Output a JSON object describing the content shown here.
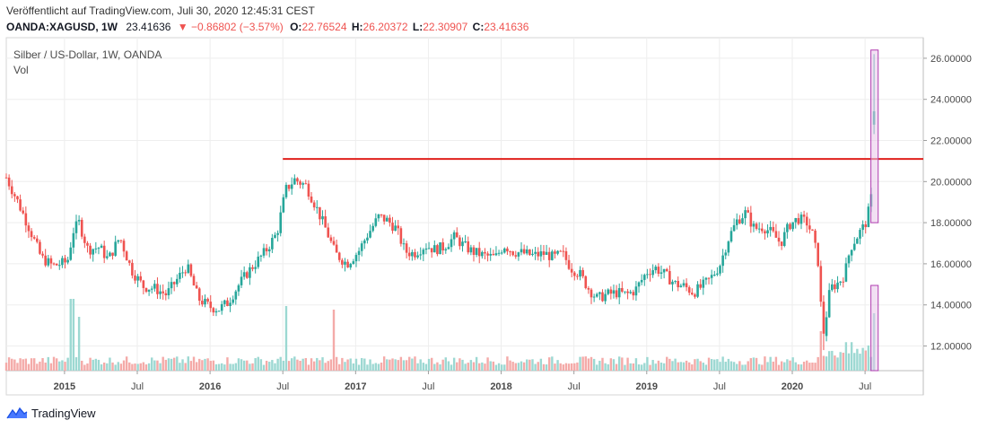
{
  "header": {
    "published": "Veröffentlicht auf TradingView.com, Juli 30, 2020 12:45:31 CEST",
    "symbol": "OANDA:XAGUSD, 1W",
    "last": "23.41636",
    "change": "−0.86802 (−3.57%)",
    "open_label": "O:",
    "open": "22.76524",
    "high_label": "H:",
    "high": "26.20372",
    "low_label": "L:",
    "low": "22.30907",
    "close_label": "C:",
    "close": "23.41636"
  },
  "legend": {
    "title": "Silber / US-Dollar, 1W, OANDA",
    "volume": "Vol"
  },
  "brand": {
    "name": "TradingView",
    "icon": "tradingview-logo-icon"
  },
  "colors": {
    "up": "#26a69a",
    "down": "#ef5350",
    "resistance": "#e0201c",
    "highlight_fill": "#e8c7ea",
    "highlight_stroke": "#b03db0"
  },
  "chart_data": {
    "type": "candlestick",
    "interval": "1W",
    "price_axis_ticks": [
      "26.00000",
      "24.00000",
      "22.00000",
      "20.00000",
      "18.00000",
      "16.00000",
      "14.00000",
      "12.00000"
    ],
    "ylim": [
      10.8,
      27.0
    ],
    "x_ticks": [
      "2015",
      "Jul",
      "2016",
      "Jul",
      "2017",
      "Jul",
      "2018",
      "Jul",
      "2019",
      "Jul",
      "2020",
      "Jul"
    ],
    "x_ticks_years": [
      2015.0,
      2015.5,
      2016.0,
      2016.5,
      2017.0,
      2017.5,
      2018.0,
      2018.5,
      2019.0,
      2019.5,
      2020.0,
      2020.5
    ],
    "xlim": [
      2014.6,
      2020.9
    ],
    "price_path": [
      [
        2014.6,
        20.2
      ],
      [
        2014.68,
        19.0
      ],
      [
        2014.76,
        17.7
      ],
      [
        2014.84,
        16.3
      ],
      [
        2014.92,
        15.9
      ],
      [
        2015.02,
        16.1
      ],
      [
        2015.06,
        17.6
      ],
      [
        2015.1,
        18.0
      ],
      [
        2015.16,
        16.7
      ],
      [
        2015.24,
        16.8
      ],
      [
        2015.3,
        16.2
      ],
      [
        2015.38,
        17.3
      ],
      [
        2015.46,
        15.7
      ],
      [
        2015.54,
        14.9
      ],
      [
        2015.62,
        14.8
      ],
      [
        2015.7,
        14.5
      ],
      [
        2015.78,
        15.3
      ],
      [
        2015.84,
        15.9
      ],
      [
        2015.92,
        14.3
      ],
      [
        2016.0,
        13.9
      ],
      [
        2016.06,
        13.8
      ],
      [
        2016.12,
        14.1
      ],
      [
        2016.2,
        15.0
      ],
      [
        2016.26,
        15.6
      ],
      [
        2016.32,
        16.1
      ],
      [
        2016.38,
        16.6
      ],
      [
        2016.46,
        17.5
      ],
      [
        2016.52,
        19.6
      ],
      [
        2016.58,
        20.1
      ],
      [
        2016.66,
        19.8
      ],
      [
        2016.72,
        18.9
      ],
      [
        2016.8,
        17.6
      ],
      [
        2016.86,
        16.5
      ],
      [
        2016.94,
        16.0
      ],
      [
        2017.02,
        16.6
      ],
      [
        2017.08,
        17.4
      ],
      [
        2017.16,
        18.3
      ],
      [
        2017.22,
        18.1
      ],
      [
        2017.28,
        17.7
      ],
      [
        2017.34,
        16.6
      ],
      [
        2017.4,
        16.5
      ],
      [
        2017.48,
        16.9
      ],
      [
        2017.54,
        16.7
      ],
      [
        2017.6,
        16.8
      ],
      [
        2017.68,
        17.3
      ],
      [
        2017.74,
        16.9
      ],
      [
        2017.8,
        16.6
      ],
      [
        2017.88,
        16.4
      ],
      [
        2017.96,
        16.3
      ],
      [
        2018.02,
        16.9
      ],
      [
        2018.08,
        16.6
      ],
      [
        2018.16,
        16.5
      ],
      [
        2018.22,
        16.4
      ],
      [
        2018.3,
        16.5
      ],
      [
        2018.36,
        16.3
      ],
      [
        2018.42,
        16.5
      ],
      [
        2018.48,
        15.8
      ],
      [
        2018.54,
        15.5
      ],
      [
        2018.6,
        14.8
      ],
      [
        2018.66,
        14.3
      ],
      [
        2018.72,
        14.5
      ],
      [
        2018.8,
        14.6
      ],
      [
        2018.86,
        14.5
      ],
      [
        2018.92,
        14.7
      ],
      [
        2019.0,
        15.6
      ],
      [
        2019.06,
        15.8
      ],
      [
        2019.12,
        15.5
      ],
      [
        2019.2,
        15.0
      ],
      [
        2019.26,
        14.9
      ],
      [
        2019.32,
        14.6
      ],
      [
        2019.38,
        14.9
      ],
      [
        2019.44,
        15.3
      ],
      [
        2019.5,
        15.9
      ],
      [
        2019.56,
        17.2
      ],
      [
        2019.62,
        18.1
      ],
      [
        2019.68,
        18.5
      ],
      [
        2019.74,
        17.7
      ],
      [
        2019.8,
        17.8
      ],
      [
        2019.86,
        17.5
      ],
      [
        2019.92,
        17.0
      ],
      [
        2019.98,
        17.9
      ],
      [
        2020.04,
        18.2
      ],
      [
        2020.1,
        18.0
      ],
      [
        2020.14,
        17.4
      ],
      [
        2020.18,
        16.0
      ],
      [
        2020.21,
        12.3
      ],
      [
        2020.26,
        14.8
      ],
      [
        2020.32,
        15.1
      ],
      [
        2020.36,
        15.5
      ],
      [
        2020.4,
        16.8
      ],
      [
        2020.46,
        17.5
      ],
      [
        2020.5,
        17.9
      ],
      [
        2020.53,
        18.7
      ],
      [
        2020.555,
        19.7
      ],
      [
        2020.575,
        22.8
      ],
      [
        2020.58,
        23.4
      ]
    ],
    "resistance_level": 21.1,
    "resistance_from": 2016.5,
    "highlight_price": {
      "from": 2020.54,
      "to": 2020.59,
      "low": 18.0,
      "high": 26.4
    },
    "highlight_volume": {
      "from": 2020.54,
      "to": 2020.59
    },
    "volume_spikes": [
      [
        2015.05,
        1.0
      ],
      [
        2015.1,
        0.75
      ],
      [
        2016.53,
        0.9
      ],
      [
        2016.85,
        0.85
      ],
      [
        2020.2,
        0.55
      ],
      [
        2020.56,
        0.8
      ],
      [
        2020.58,
        0.95
      ]
    ],
    "grid": true
  }
}
